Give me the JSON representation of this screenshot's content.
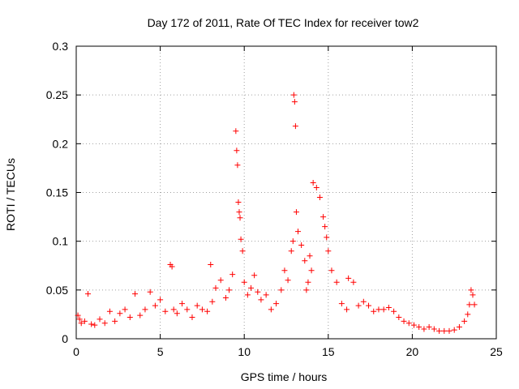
{
  "chart_data": {
    "type": "scatter",
    "title": "Day 172 of 2011, Rate Of TEC Index for receiver tow2",
    "xlabel": "GPS time / hours",
    "ylabel": "ROTI / TECUs",
    "xlim": [
      0,
      25
    ],
    "ylim": [
      0,
      0.3
    ],
    "xticks": [
      0,
      5,
      10,
      15,
      20,
      25
    ],
    "yticks": [
      0,
      0.05,
      0.1,
      0.15,
      0.2,
      0.25,
      0.3
    ],
    "xtick_labels": [
      "0",
      "5",
      "10",
      "15",
      "20",
      "25"
    ],
    "ytick_labels": [
      "0",
      "0.05",
      "0.1",
      "0.15",
      "0.2",
      "0.25",
      "0.3"
    ],
    "grid": true,
    "marker": "+",
    "color": "#ff0000",
    "series": [
      {
        "name": "tow2",
        "x": [
          0.1,
          0.2,
          0.3,
          0.5,
          0.7,
          0.9,
          1.1,
          1.4,
          1.7,
          2.0,
          2.3,
          2.6,
          2.9,
          3.2,
          3.5,
          3.8,
          4.1,
          4.4,
          4.7,
          5.0,
          5.3,
          5.6,
          5.7,
          5.8,
          6.0,
          6.3,
          6.6,
          6.9,
          7.2,
          7.5,
          7.8,
          8.0,
          8.1,
          8.3,
          8.6,
          8.9,
          9.1,
          9.3,
          9.5,
          9.55,
          9.6,
          9.65,
          9.7,
          9.75,
          9.8,
          9.9,
          10.0,
          10.2,
          10.4,
          10.6,
          10.8,
          11.0,
          11.3,
          11.6,
          11.9,
          12.2,
          12.4,
          12.6,
          12.8,
          12.9,
          12.95,
          13.0,
          13.05,
          13.1,
          13.2,
          13.4,
          13.6,
          13.7,
          13.8,
          13.9,
          14.0,
          14.1,
          14.3,
          14.5,
          14.7,
          14.8,
          14.9,
          15.0,
          15.2,
          15.5,
          15.8,
          16.1,
          16.2,
          16.5,
          16.8,
          17.1,
          17.4,
          17.7,
          18.0,
          18.3,
          18.6,
          18.9,
          19.2,
          19.5,
          19.8,
          20.1,
          20.4,
          20.7,
          21.0,
          21.3,
          21.6,
          21.9,
          22.2,
          22.5,
          22.8,
          23.1,
          23.3,
          23.4,
          23.5,
          23.6,
          23.7
        ],
        "y": [
          0.024,
          0.02,
          0.016,
          0.018,
          0.046,
          0.015,
          0.014,
          0.02,
          0.016,
          0.028,
          0.018,
          0.026,
          0.03,
          0.022,
          0.046,
          0.024,
          0.03,
          0.048,
          0.034,
          0.04,
          0.028,
          0.076,
          0.074,
          0.03,
          0.026,
          0.036,
          0.03,
          0.022,
          0.034,
          0.03,
          0.028,
          0.076,
          0.038,
          0.052,
          0.06,
          0.042,
          0.05,
          0.066,
          0.213,
          0.193,
          0.178,
          0.14,
          0.13,
          0.124,
          0.102,
          0.09,
          0.058,
          0.045,
          0.052,
          0.065,
          0.048,
          0.04,
          0.045,
          0.03,
          0.036,
          0.05,
          0.07,
          0.06,
          0.09,
          0.1,
          0.25,
          0.243,
          0.218,
          0.13,
          0.11,
          0.096,
          0.08,
          0.05,
          0.058,
          0.085,
          0.07,
          0.16,
          0.155,
          0.145,
          0.125,
          0.115,
          0.104,
          0.09,
          0.07,
          0.058,
          0.036,
          0.03,
          0.062,
          0.058,
          0.034,
          0.038,
          0.034,
          0.028,
          0.03,
          0.03,
          0.032,
          0.028,
          0.022,
          0.018,
          0.016,
          0.014,
          0.012,
          0.01,
          0.012,
          0.01,
          0.008,
          0.008,
          0.008,
          0.009,
          0.012,
          0.018,
          0.025,
          0.035,
          0.05,
          0.045,
          0.035
        ]
      }
    ]
  }
}
